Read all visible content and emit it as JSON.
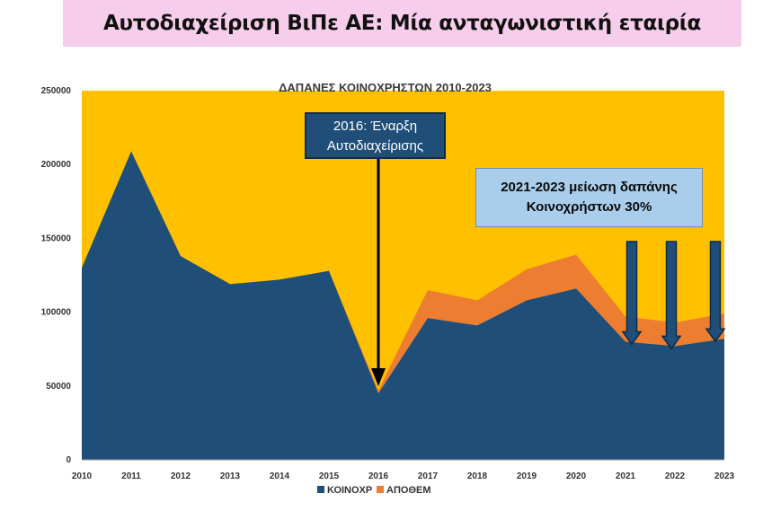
{
  "header": {
    "title": "Αυτοδιαχείριση ΒιΠε ΑΕ: Μία ανταγωνιστική εταιρία"
  },
  "annotations": {
    "callout1_line1": "2016: Έναρξη",
    "callout1_line2": "Αυτοδιαχείρισης",
    "callout2_line1": "2021-2023 μείωση δαπάνης",
    "callout2_line2": "Κοινοχρήστων 30%"
  },
  "colors": {
    "background": "#ffc000",
    "koinoxr": "#1f4e79",
    "apothem": "#ed7d31",
    "arrow_fill": "#1f4e79"
  },
  "chart_data": {
    "type": "area",
    "title": "ΔΑΠΑΝΕΣ ΚΟΙΝΟΧΡΗΣΤΩΝ 2010-2023",
    "x": [
      2010,
      2011,
      2012,
      2013,
      2014,
      2015,
      2016,
      2017,
      2018,
      2019,
      2020,
      2021,
      2022,
      2023
    ],
    "stacked": true,
    "series": [
      {
        "name": "ΚΟΙΝΟΧΡ",
        "values": [
          130000,
          209000,
          138000,
          119000,
          122000,
          128000,
          45000,
          96000,
          91000,
          108000,
          116000,
          80000,
          77000,
          82000
        ]
      },
      {
        "name": "ΑΠΟΘΕΜ",
        "values": [
          0,
          0,
          0,
          0,
          0,
          0,
          2000,
          19000,
          17000,
          21000,
          23000,
          17000,
          16000,
          17000
        ]
      }
    ],
    "ylim": [
      0,
      250000
    ],
    "yticks": [
      0,
      50000,
      100000,
      150000,
      200000,
      250000
    ],
    "legend": "bottom",
    "grid": false
  }
}
